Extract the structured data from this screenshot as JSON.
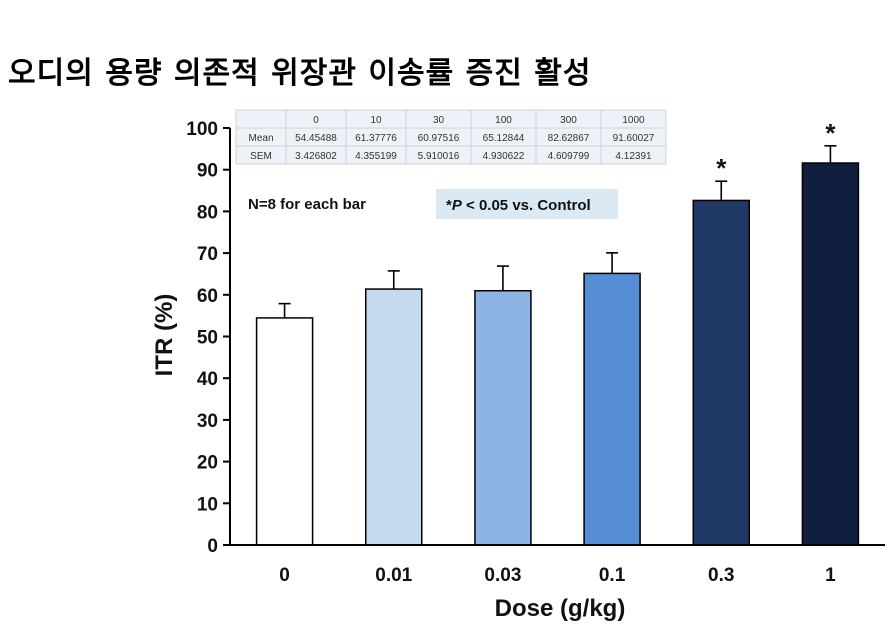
{
  "title": "오디의 용량 의존적 위장관 이송률 증진 활성",
  "chart_data": {
    "type": "bar",
    "categories": [
      "0",
      "0.01",
      "0.03",
      "0.1",
      "0.3",
      "1"
    ],
    "values": [
      54.45488,
      61.37776,
      60.97516,
      65.12844,
      82.62867,
      91.60027
    ],
    "errors": [
      3.426802,
      4.355199,
      5.910016,
      4.930622,
      4.609799,
      4.12391
    ],
    "significant": [
      false,
      false,
      false,
      false,
      true,
      true
    ],
    "significance_marker": "*",
    "bar_colors": [
      "#ffffff",
      "#c5d9f1",
      "#8db4e2",
      "#558ed5",
      "#1f3864",
      "#0f1f3d"
    ],
    "xlabel": "Dose (g/kg)",
    "ylabel": "ITR (%)",
    "ylim": [
      0,
      100
    ],
    "yticks": [
      "0",
      "10",
      "20",
      "30",
      "40",
      "50",
      "60",
      "70",
      "80",
      "90",
      "100"
    ],
    "note_n": "N=8 for each bar",
    "note_p": {
      "prefix": "*",
      "italic": "P",
      "suffix": " < 0.05 vs. Control"
    },
    "note_p_bg": "#dbe9f5",
    "table": {
      "header": [
        "",
        "0",
        "10",
        "30",
        "100",
        "300",
        "1000"
      ],
      "rows": [
        [
          "Mean",
          "54.45488",
          "61.37776",
          "60.97516",
          "65.12844",
          "82.62867",
          "91.60027"
        ],
        [
          "SEM",
          "3.426802",
          "4.355199",
          "5.910016",
          "4.930622",
          "4.609799",
          "4.12391"
        ]
      ]
    }
  }
}
